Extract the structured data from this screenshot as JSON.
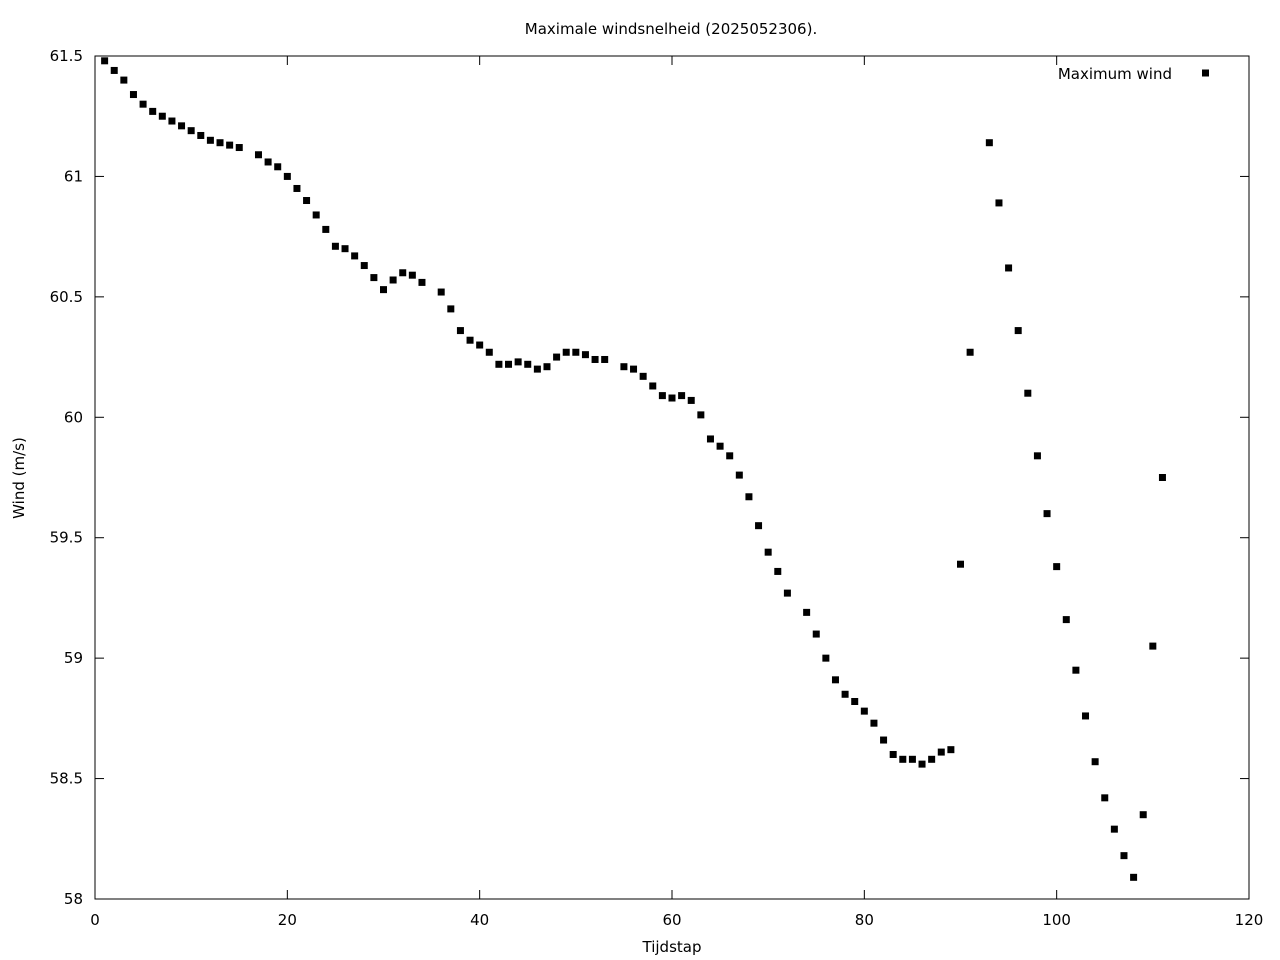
{
  "chart_data": {
    "type": "scatter",
    "title": "Maximale windsnelheid (2025052306).",
    "xlabel": "Tijdstap",
    "ylabel": "Wind (m/s)",
    "xlim": [
      0,
      120
    ],
    "ylim": [
      58,
      61.5
    ],
    "xticks": [
      "0",
      "20",
      "40",
      "60",
      "80",
      "100",
      "120"
    ],
    "yticks": [
      "58",
      "58.5",
      "59",
      "59.5",
      "60",
      "60.5",
      "61",
      "61.5"
    ],
    "grid": false,
    "legend_position": "top-right",
    "series": [
      {
        "name": "Maximum wind",
        "color": "#000000",
        "marker": "square",
        "points": [
          [
            1,
            61.48
          ],
          [
            2,
            61.44
          ],
          [
            3,
            61.4
          ],
          [
            4,
            61.34
          ],
          [
            5,
            61.3
          ],
          [
            6,
            61.27
          ],
          [
            7,
            61.25
          ],
          [
            8,
            61.23
          ],
          [
            9,
            61.21
          ],
          [
            10,
            61.19
          ],
          [
            11,
            61.17
          ],
          [
            12,
            61.15
          ],
          [
            13,
            61.14
          ],
          [
            14,
            61.13
          ],
          [
            15,
            61.12
          ],
          [
            17,
            61.09
          ],
          [
            18,
            61.06
          ],
          [
            19,
            61.04
          ],
          [
            20,
            61.0
          ],
          [
            21,
            60.95
          ],
          [
            22,
            60.9
          ],
          [
            23,
            60.84
          ],
          [
            24,
            60.78
          ],
          [
            25,
            60.71
          ],
          [
            26,
            60.7
          ],
          [
            27,
            60.67
          ],
          [
            28,
            60.63
          ],
          [
            29,
            60.58
          ],
          [
            30,
            60.53
          ],
          [
            31,
            60.57
          ],
          [
            32,
            60.6
          ],
          [
            33,
            60.59
          ],
          [
            34,
            60.56
          ],
          [
            36,
            60.52
          ],
          [
            37,
            60.45
          ],
          [
            38,
            60.36
          ],
          [
            39,
            60.32
          ],
          [
            40,
            60.3
          ],
          [
            41,
            60.27
          ],
          [
            42,
            60.22
          ],
          [
            43,
            60.22
          ],
          [
            44,
            60.23
          ],
          [
            45,
            60.22
          ],
          [
            46,
            60.2
          ],
          [
            47,
            60.21
          ],
          [
            48,
            60.25
          ],
          [
            49,
            60.27
          ],
          [
            50,
            60.27
          ],
          [
            51,
            60.26
          ],
          [
            52,
            60.24
          ],
          [
            53,
            60.24
          ],
          [
            55,
            60.21
          ],
          [
            56,
            60.2
          ],
          [
            57,
            60.17
          ],
          [
            58,
            60.13
          ],
          [
            59,
            60.09
          ],
          [
            60,
            60.08
          ],
          [
            61,
            60.09
          ],
          [
            62,
            60.07
          ],
          [
            63,
            60.01
          ],
          [
            64,
            59.91
          ],
          [
            65,
            59.88
          ],
          [
            66,
            59.84
          ],
          [
            67,
            59.76
          ],
          [
            68,
            59.67
          ],
          [
            69,
            59.55
          ],
          [
            70,
            59.44
          ],
          [
            71,
            59.36
          ],
          [
            72,
            59.27
          ],
          [
            74,
            59.19
          ],
          [
            75,
            59.1
          ],
          [
            76,
            59.0
          ],
          [
            77,
            58.91
          ],
          [
            78,
            58.85
          ],
          [
            79,
            58.82
          ],
          [
            80,
            58.78
          ],
          [
            81,
            58.73
          ],
          [
            82,
            58.66
          ],
          [
            83,
            58.6
          ],
          [
            84,
            58.58
          ],
          [
            85,
            58.58
          ],
          [
            86,
            58.56
          ],
          [
            87,
            58.58
          ],
          [
            88,
            58.61
          ],
          [
            89,
            58.62
          ],
          [
            90,
            59.39
          ],
          [
            91,
            60.27
          ],
          [
            93,
            61.14
          ],
          [
            94,
            60.89
          ],
          [
            95,
            60.62
          ],
          [
            96,
            60.36
          ],
          [
            97,
            60.1
          ],
          [
            98,
            59.84
          ],
          [
            99,
            59.6
          ],
          [
            100,
            59.38
          ],
          [
            101,
            59.16
          ],
          [
            102,
            58.95
          ],
          [
            103,
            58.76
          ],
          [
            104,
            58.57
          ],
          [
            105,
            58.42
          ],
          [
            106,
            58.29
          ],
          [
            107,
            58.18
          ],
          [
            108,
            58.09
          ],
          [
            109,
            58.35
          ],
          [
            110,
            59.05
          ],
          [
            111,
            59.75
          ]
        ]
      }
    ]
  }
}
